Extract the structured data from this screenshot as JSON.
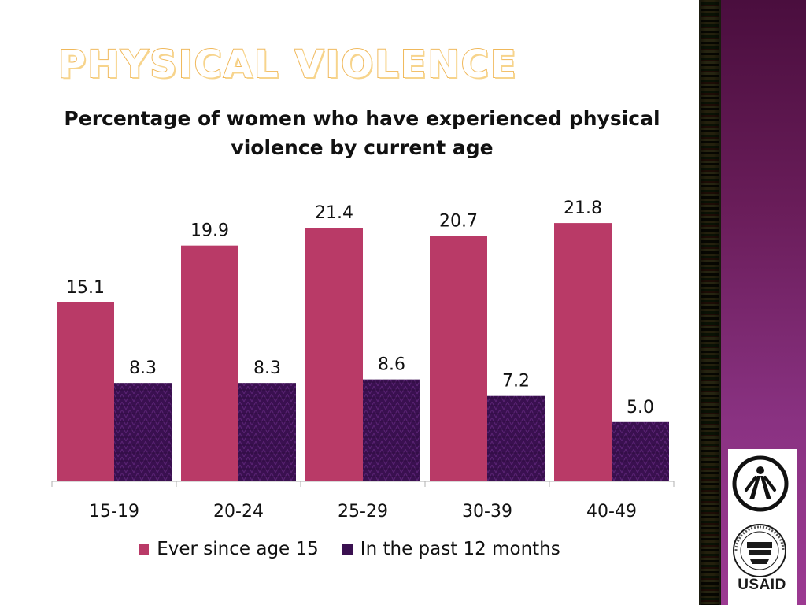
{
  "slide": {
    "title": "PHYSICAL VIOLENCE"
  },
  "chart_data": {
    "type": "bar",
    "title": "Percentage of women who have experienced physical violence by current age",
    "categories": [
      "15-19",
      "20-24",
      "25-29",
      "30-39",
      "40-49"
    ],
    "series": [
      {
        "name": "Ever since age 15",
        "values": [
          15.1,
          19.9,
          21.4,
          20.7,
          21.8
        ],
        "color": "#b93a67"
      },
      {
        "name": "In the past 12 months",
        "values": [
          8.3,
          8.3,
          8.6,
          7.2,
          5.0
        ],
        "color": "#3a1050"
      }
    ],
    "value_labels": [
      [
        "15.1",
        "19.9",
        "21.4",
        "20.7",
        "21.8"
      ],
      [
        "8.3",
        "8.3",
        "8.6",
        "7.2",
        "5.0"
      ]
    ],
    "ylim": [
      0,
      24
    ],
    "grid": false,
    "legend": "bottom"
  },
  "logos": {
    "top": "usaid-partner-emblem",
    "bottom": "usaid-seal",
    "usaid_wordmark": "USAID"
  },
  "colors": {
    "title_outline": "#f0b85a",
    "ever_bar": "#b93a67",
    "past12_bar": "#3a1050",
    "side_panel": "#8a3282"
  }
}
